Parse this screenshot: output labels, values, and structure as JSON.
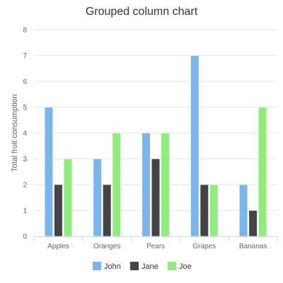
{
  "chart_data": {
    "type": "bar",
    "title": "Grouped column chart",
    "xlabel": "",
    "ylabel": "Total fruit consumption",
    "ylim": [
      0,
      8
    ],
    "yticks": [
      "0",
      "1",
      "2",
      "3",
      "4",
      "5",
      "6",
      "7",
      "8"
    ],
    "categories": [
      "Apples",
      "Oranges",
      "Pears",
      "Grapes",
      "Bananas"
    ],
    "series": [
      {
        "name": "John",
        "color": "#7cb5ec",
        "values": [
          5,
          3,
          4,
          7,
          2
        ]
      },
      {
        "name": "Jane",
        "color": "#434348",
        "values": [
          2,
          2,
          3,
          2,
          1
        ]
      },
      {
        "name": "Joe",
        "color": "#90ed7d",
        "values": [
          3,
          4,
          4,
          2,
          5
        ]
      }
    ],
    "grid": true,
    "legend_position": "bottom-center"
  }
}
